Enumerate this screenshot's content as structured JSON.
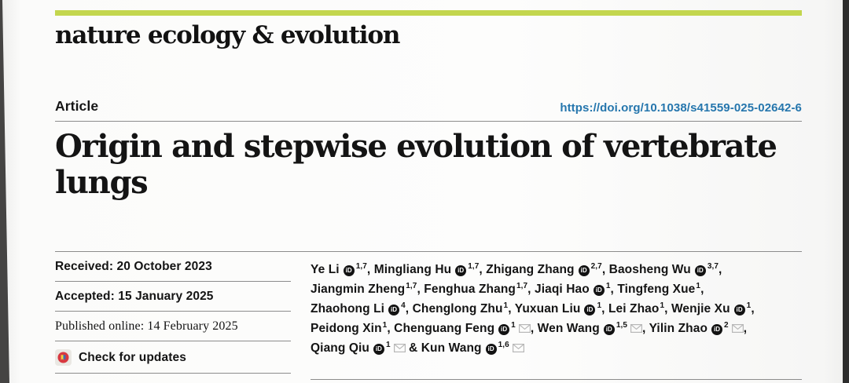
{
  "header": {
    "journal": "nature ecology & evolution",
    "accent_color": "#c3d64e"
  },
  "article": {
    "label": "Article",
    "doi": "https://doi.org/10.1038/s41559-025-02642-6",
    "doi_color": "#2576ad",
    "title_lines": [
      "Origin and stepwise evolution of vertebrate",
      "lungs"
    ]
  },
  "history": {
    "received": "Received: 20 October 2023",
    "accepted": "Accepted: 15 January 2025",
    "published": "Published online: 14 February 2025",
    "check_updates": "Check for updates"
  },
  "authors": {
    "orcid_glyph": "iD",
    "last_joiner": "&",
    "list": [
      {
        "name": "Ye Li",
        "orcid": true,
        "sup": "1,7"
      },
      {
        "name": "Mingliang Hu",
        "orcid": true,
        "sup": "1,7"
      },
      {
        "name": "Zhigang Zhang",
        "orcid": true,
        "sup": "2,7"
      },
      {
        "name": "Baosheng Wu",
        "orcid": true,
        "sup": "3,7",
        "break_after": true
      },
      {
        "name": "Jiangmin Zheng",
        "orcid": false,
        "sup": "1,7"
      },
      {
        "name": "Fenghua Zhang",
        "orcid": false,
        "sup": "1,7"
      },
      {
        "name": "Jiaqi Hao",
        "orcid": true,
        "sup": "1"
      },
      {
        "name": "Tingfeng Xue",
        "orcid": false,
        "sup": "1",
        "break_after": true
      },
      {
        "name": "Zhaohong Li",
        "orcid": true,
        "sup": "4"
      },
      {
        "name": "Chenglong Zhu",
        "orcid": false,
        "sup": "1"
      },
      {
        "name": "Yuxuan Liu",
        "orcid": true,
        "sup": "1"
      },
      {
        "name": "Lei Zhao",
        "orcid": false,
        "sup": "1"
      },
      {
        "name": "Wenjie Xu",
        "orcid": true,
        "sup": "1",
        "break_after": true
      },
      {
        "name": "Peidong Xin",
        "orcid": false,
        "sup": "1"
      },
      {
        "name": "Chenguang Feng",
        "orcid": true,
        "sup": "1",
        "email": true
      },
      {
        "name": "Wen Wang",
        "orcid": true,
        "sup": "1,5",
        "email": true
      },
      {
        "name": "Yilin Zhao",
        "orcid": true,
        "sup": "2",
        "email": true,
        "break_after": true
      },
      {
        "name": "Qiang Qiu",
        "orcid": true,
        "sup": "1",
        "email": true
      },
      {
        "name": "Kun Wang",
        "orcid": true,
        "sup": "1,6",
        "email": true
      }
    ]
  }
}
